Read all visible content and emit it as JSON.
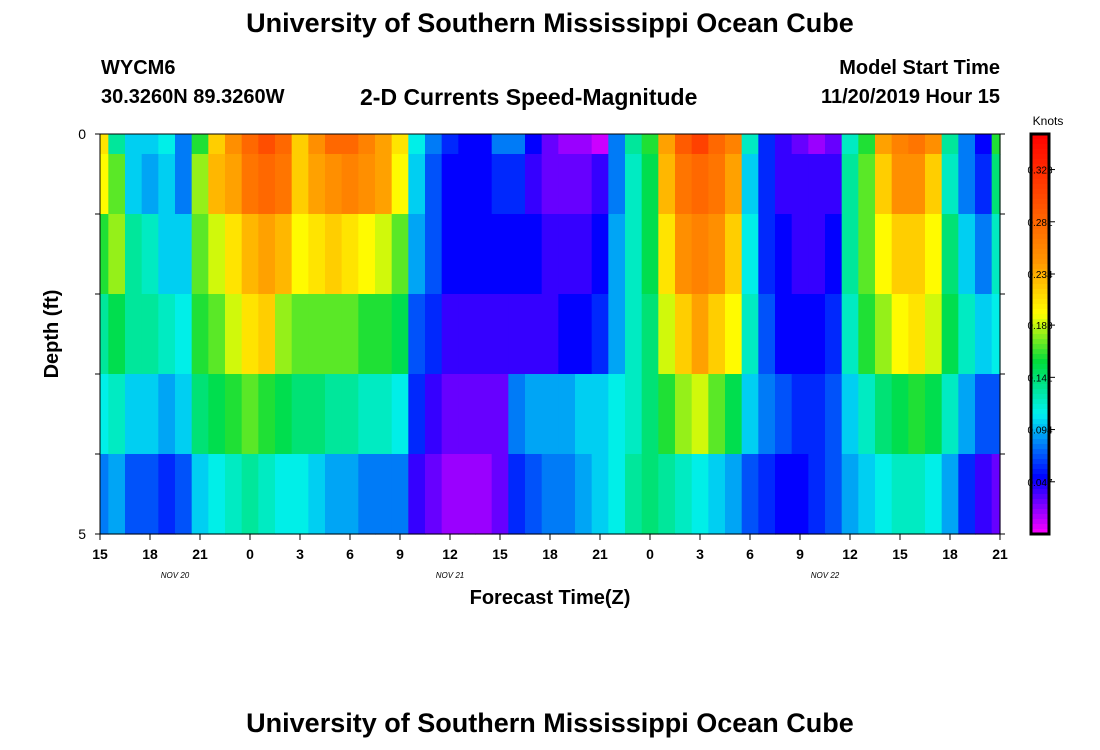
{
  "header": {
    "title": "University of Southern Mississippi Ocean Cube",
    "station_id": "WYCM6",
    "station_coords": "30.3260N 89.3260W",
    "chart_title": "2-D Currents Speed-Magnitude",
    "model_start_label": "Model Start Time",
    "model_start_value": "11/20/2019 Hour 15"
  },
  "footer": {
    "title": "University of Southern Mississippi Ocean Cube"
  },
  "chart_data": {
    "type": "heatmap",
    "title": "2-D Currents Speed-Magnitude",
    "xlabel": "Forecast Time(Z)",
    "ylabel": "Depth (ft)",
    "xlim": [
      0,
      54
    ],
    "ylim": [
      0,
      5
    ],
    "x_tick_labels": [
      "15",
      "18",
      "21",
      "0",
      "3",
      "6",
      "9",
      "12",
      "15",
      "18",
      "21",
      "0",
      "3",
      "6",
      "9",
      "12",
      "15",
      "18",
      "21"
    ],
    "date_labels": [
      {
        "label": "NOV  20",
        "hour": 4.5
      },
      {
        "label": "NOV  21",
        "hour": 21
      },
      {
        "label": "NOV  22",
        "hour": 43.5
      }
    ],
    "y_tick_labels": [
      {
        "value": 0,
        "label": "0"
      },
      {
        "value": 1,
        "label": ""
      },
      {
        "value": 2,
        "label": ""
      },
      {
        "value": 3,
        "label": ""
      },
      {
        "value": 4,
        "label": ""
      },
      {
        "value": 5,
        "label": "5"
      }
    ],
    "colorbar": {
      "unit": "Knots",
      "min": 0.0,
      "max": 0.36,
      "ticks": [
        "0.328",
        "0.281",
        "0.234",
        "0.188",
        "0.141",
        "0.094",
        "0.047"
      ],
      "tick_values": [
        0.328,
        0.281,
        0.234,
        0.188,
        0.141,
        0.094,
        0.047
      ]
    },
    "hours": [
      0,
      1,
      2,
      3,
      4,
      5,
      6,
      7,
      8,
      9,
      10,
      11,
      12,
      13,
      14,
      15,
      16,
      17,
      18,
      19,
      20,
      21,
      22,
      23,
      24,
      25,
      26,
      27,
      28,
      29,
      30,
      31,
      32,
      33,
      34,
      35,
      36,
      37,
      38,
      39,
      40,
      41,
      42,
      43,
      44,
      45,
      46,
      47,
      48,
      49,
      50,
      51,
      52,
      53,
      54
    ],
    "depth_rows": [
      0,
      0.5,
      1.5,
      2.5,
      3.5,
      4.5
    ],
    "values": [
      [
        0.21,
        0.13,
        0.1,
        0.1,
        0.11,
        0.08,
        0.16,
        0.22,
        0.25,
        0.28,
        0.3,
        0.28,
        0.22,
        0.25,
        0.28,
        0.28,
        0.26,
        0.24,
        0.21,
        0.11,
        0.08,
        0.06,
        0.05,
        0.05,
        0.08,
        0.08,
        0.05,
        0.03,
        0.02,
        0.02,
        0.01,
        0.08,
        0.13,
        0.16,
        0.24,
        0.29,
        0.31,
        0.28,
        0.26,
        0.12,
        0.06,
        0.04,
        0.03,
        0.02,
        0.03,
        0.12,
        0.16,
        0.24,
        0.26,
        0.27,
        0.25,
        0.13,
        0.08,
        0.05,
        0.16
      ],
      [
        0.2,
        0.17,
        0.1,
        0.09,
        0.1,
        0.08,
        0.18,
        0.23,
        0.24,
        0.27,
        0.28,
        0.27,
        0.22,
        0.24,
        0.25,
        0.26,
        0.25,
        0.24,
        0.2,
        0.1,
        0.07,
        0.05,
        0.05,
        0.05,
        0.06,
        0.06,
        0.04,
        0.03,
        0.03,
        0.03,
        0.04,
        0.08,
        0.12,
        0.15,
        0.23,
        0.27,
        0.28,
        0.27,
        0.24,
        0.1,
        0.06,
        0.04,
        0.04,
        0.04,
        0.04,
        0.13,
        0.17,
        0.22,
        0.25,
        0.25,
        0.22,
        0.12,
        0.08,
        0.06,
        0.14
      ],
      [
        0.16,
        0.18,
        0.13,
        0.12,
        0.1,
        0.1,
        0.17,
        0.19,
        0.21,
        0.23,
        0.24,
        0.23,
        0.2,
        0.21,
        0.22,
        0.21,
        0.2,
        0.19,
        0.17,
        0.09,
        0.07,
        0.05,
        0.05,
        0.05,
        0.05,
        0.05,
        0.05,
        0.04,
        0.04,
        0.04,
        0.05,
        0.09,
        0.12,
        0.15,
        0.21,
        0.25,
        0.26,
        0.25,
        0.22,
        0.11,
        0.06,
        0.05,
        0.04,
        0.04,
        0.05,
        0.13,
        0.17,
        0.2,
        0.22,
        0.22,
        0.2,
        0.14,
        0.1,
        0.08,
        0.12
      ],
      [
        0.13,
        0.15,
        0.13,
        0.13,
        0.12,
        0.11,
        0.16,
        0.17,
        0.19,
        0.21,
        0.22,
        0.18,
        0.17,
        0.17,
        0.17,
        0.17,
        0.16,
        0.16,
        0.15,
        0.07,
        0.06,
        0.04,
        0.04,
        0.04,
        0.04,
        0.04,
        0.04,
        0.04,
        0.05,
        0.05,
        0.06,
        0.09,
        0.12,
        0.14,
        0.19,
        0.22,
        0.24,
        0.22,
        0.2,
        0.12,
        0.07,
        0.05,
        0.05,
        0.05,
        0.06,
        0.12,
        0.16,
        0.18,
        0.2,
        0.21,
        0.19,
        0.15,
        0.12,
        0.1,
        0.11
      ],
      [
        0.11,
        0.12,
        0.1,
        0.1,
        0.09,
        0.1,
        0.14,
        0.15,
        0.16,
        0.17,
        0.16,
        0.15,
        0.14,
        0.14,
        0.13,
        0.13,
        0.12,
        0.12,
        0.11,
        0.06,
        0.04,
        0.03,
        0.03,
        0.03,
        0.03,
        0.08,
        0.09,
        0.09,
        0.09,
        0.1,
        0.1,
        0.11,
        0.12,
        0.14,
        0.16,
        0.18,
        0.19,
        0.17,
        0.15,
        0.1,
        0.08,
        0.07,
        0.06,
        0.06,
        0.07,
        0.1,
        0.12,
        0.14,
        0.15,
        0.16,
        0.15,
        0.12,
        0.09,
        0.07,
        0.07
      ],
      [
        0.08,
        0.09,
        0.07,
        0.07,
        0.06,
        0.07,
        0.1,
        0.11,
        0.12,
        0.13,
        0.12,
        0.11,
        0.11,
        0.1,
        0.09,
        0.09,
        0.08,
        0.08,
        0.08,
        0.04,
        0.03,
        0.02,
        0.02,
        0.02,
        0.03,
        0.06,
        0.07,
        0.08,
        0.08,
        0.09,
        0.1,
        0.11,
        0.13,
        0.14,
        0.13,
        0.12,
        0.11,
        0.1,
        0.09,
        0.07,
        0.06,
        0.05,
        0.05,
        0.06,
        0.07,
        0.09,
        0.1,
        0.11,
        0.12,
        0.12,
        0.11,
        0.09,
        0.06,
        0.04,
        0.03
      ]
    ]
  }
}
